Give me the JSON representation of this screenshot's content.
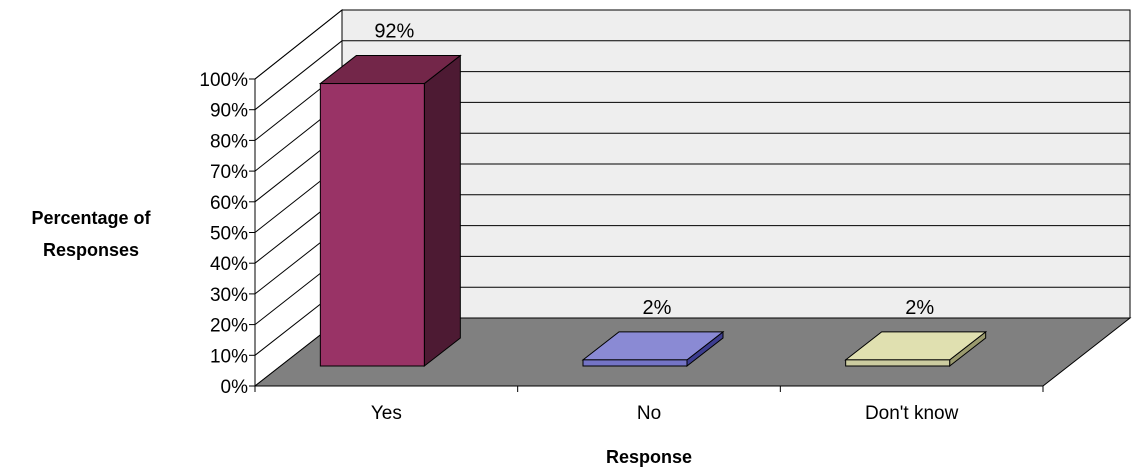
{
  "chart_data": {
    "type": "bar",
    "categories": [
      "Yes",
      "No",
      "Don't know"
    ],
    "values": [
      92,
      2,
      2
    ],
    "data_labels": [
      "92%",
      "2%",
      "2%"
    ],
    "xlabel": "Response",
    "ylabel": "Percentage of Responses",
    "ylim": [
      0,
      100
    ],
    "yticks": [
      "0%",
      "10%",
      "20%",
      "30%",
      "40%",
      "50%",
      "60%",
      "70%",
      "80%",
      "90%",
      "100%"
    ],
    "grid": true,
    "legend": "none",
    "three_d": true,
    "colors": {
      "bars": [
        "#993366",
        "#7474C6",
        "#CCCCA0"
      ],
      "bar_sides": [
        "#4D1A33",
        "#3D3D8F",
        "#9A9A6E"
      ],
      "bar_tops": [
        "#732649",
        "#8A8AD4",
        "#E0E0B0"
      ],
      "wall": "#EEEEEE",
      "floor": "#808080",
      "gridline": "#000000"
    }
  }
}
